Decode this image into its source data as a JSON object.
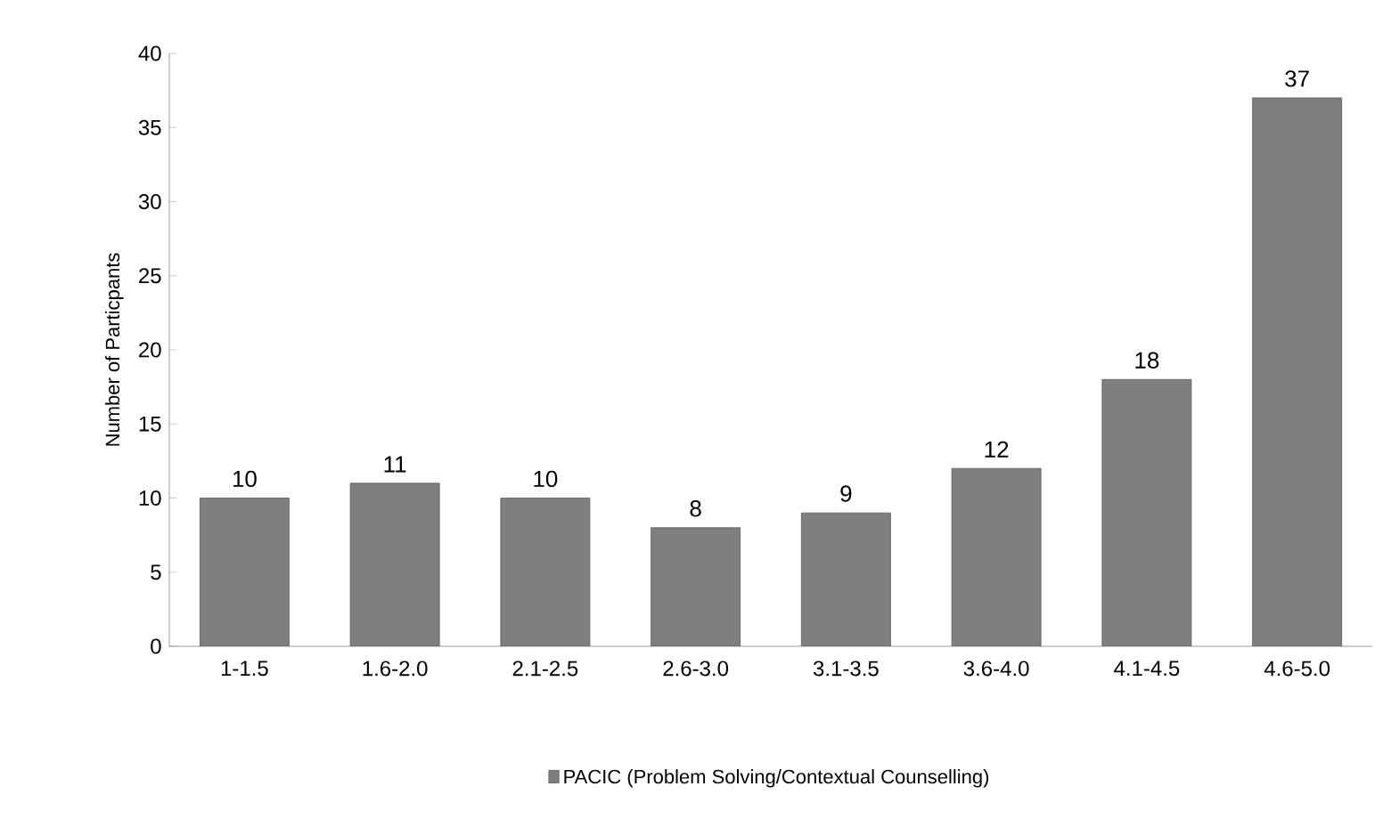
{
  "chart_data": {
    "type": "bar",
    "ylabel": "Number of Particpants",
    "categories": [
      "1-1.5",
      "1.6-2.0",
      "2.1-2.5",
      "2.6-3.0",
      "3.1-3.5",
      "3.6-4.0",
      "4.1-4.5",
      "4.6-5.0"
    ],
    "series": [
      {
        "name": "PACIC (Problem Solving/Contextual Counselling)",
        "color": "#7f7f7f",
        "values": [
          10,
          11,
          10,
          8,
          9,
          12,
          18,
          37
        ]
      }
    ],
    "ylim": [
      0,
      40
    ],
    "yticks": [
      0,
      5,
      10,
      15,
      20,
      25,
      30,
      35,
      40
    ],
    "data_labels": true,
    "legend": "bottom"
  }
}
